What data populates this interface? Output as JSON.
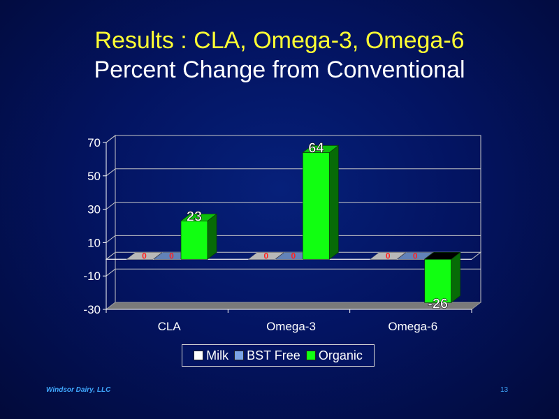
{
  "slide": {
    "title_line1": "Results : CLA, Omega-3, Omega-6",
    "title_line2": "Percent Change from Conventional",
    "footer_company": "Windsor Dairy, LLC",
    "page_number": "13"
  },
  "chart_data": {
    "type": "bar",
    "categories": [
      "CLA",
      "Omega-3",
      "Omega-6"
    ],
    "series": [
      {
        "name": "Milk",
        "values": [
          0,
          0,
          0
        ],
        "color": "#ffffff"
      },
      {
        "name": "BST Free",
        "values": [
          0,
          0,
          0
        ],
        "color": "#7aa3e6"
      },
      {
        "name": "Organic",
        "values": [
          23,
          64,
          -26
        ],
        "color": "#11ff11"
      }
    ],
    "yticks": [
      70,
      50,
      30,
      10,
      -10,
      -30
    ],
    "ylim": [
      -30,
      70
    ],
    "legend_position": "bottom",
    "grid": true,
    "colors": {
      "title": "#ffff33",
      "subtitle": "#ffffff",
      "zero_label": "#ff2020",
      "value_label": "#ffffff",
      "footer": "#3fa9ff"
    }
  }
}
